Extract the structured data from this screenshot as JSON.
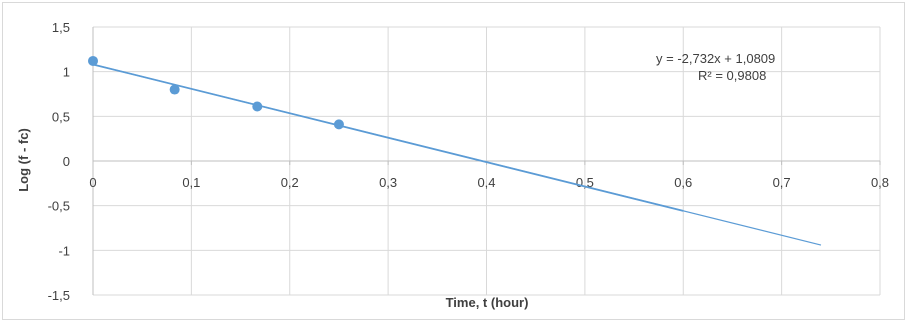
{
  "chart_data": {
    "type": "scatter",
    "xlabel": "Time, t (hour)",
    "ylabel": "Log (f - fc)",
    "xlim": [
      0,
      0.8
    ],
    "ylim": [
      -1.5,
      1.5
    ],
    "x_ticks": [
      "0",
      "0,1",
      "0,2",
      "0,3",
      "0,4",
      "0,5",
      "0,6",
      "0,7",
      "0,8"
    ],
    "y_ticks": [
      "1,5",
      "1",
      "0,5",
      "0",
      "-0,5",
      "-1",
      "-1,5"
    ],
    "grid": true,
    "series": [
      {
        "points": [
          {
            "x": 0,
            "y": 1.12
          },
          {
            "x": 0.083,
            "y": 0.8
          },
          {
            "x": 0.167,
            "y": 0.61
          },
          {
            "x": 0.25,
            "y": 0.41
          }
        ],
        "color": "#5b9bd5"
      }
    ],
    "trendline": {
      "slope": -2.732,
      "intercept": 1.0809,
      "x_range": [
        0,
        0.74
      ],
      "color": "#5b9bd5",
      "equation": "y = -2,732x + 1,0809",
      "r_squared": "R² = 0,9808"
    }
  }
}
